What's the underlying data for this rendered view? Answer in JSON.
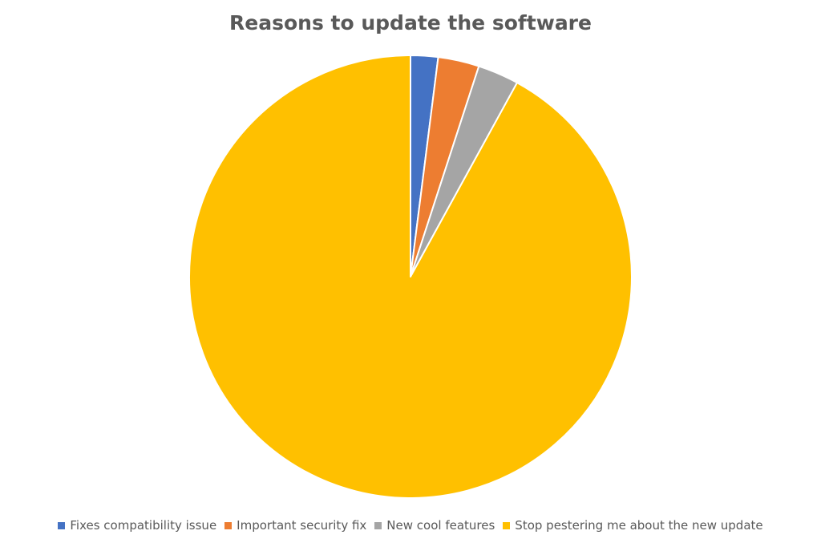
{
  "chart_data": {
    "type": "pie",
    "title": "Reasons to update the software",
    "categories": [
      "Fixes compatibility issue",
      "Important security fix",
      "New cool features",
      "Stop pestering me about the new update"
    ],
    "values": [
      2,
      3,
      3,
      92
    ],
    "colors": [
      "#4472C4",
      "#ED7D31",
      "#A5A5A5",
      "#FFC000"
    ],
    "legend": "bottom",
    "start_angle": "top",
    "direction": "clockwise"
  }
}
